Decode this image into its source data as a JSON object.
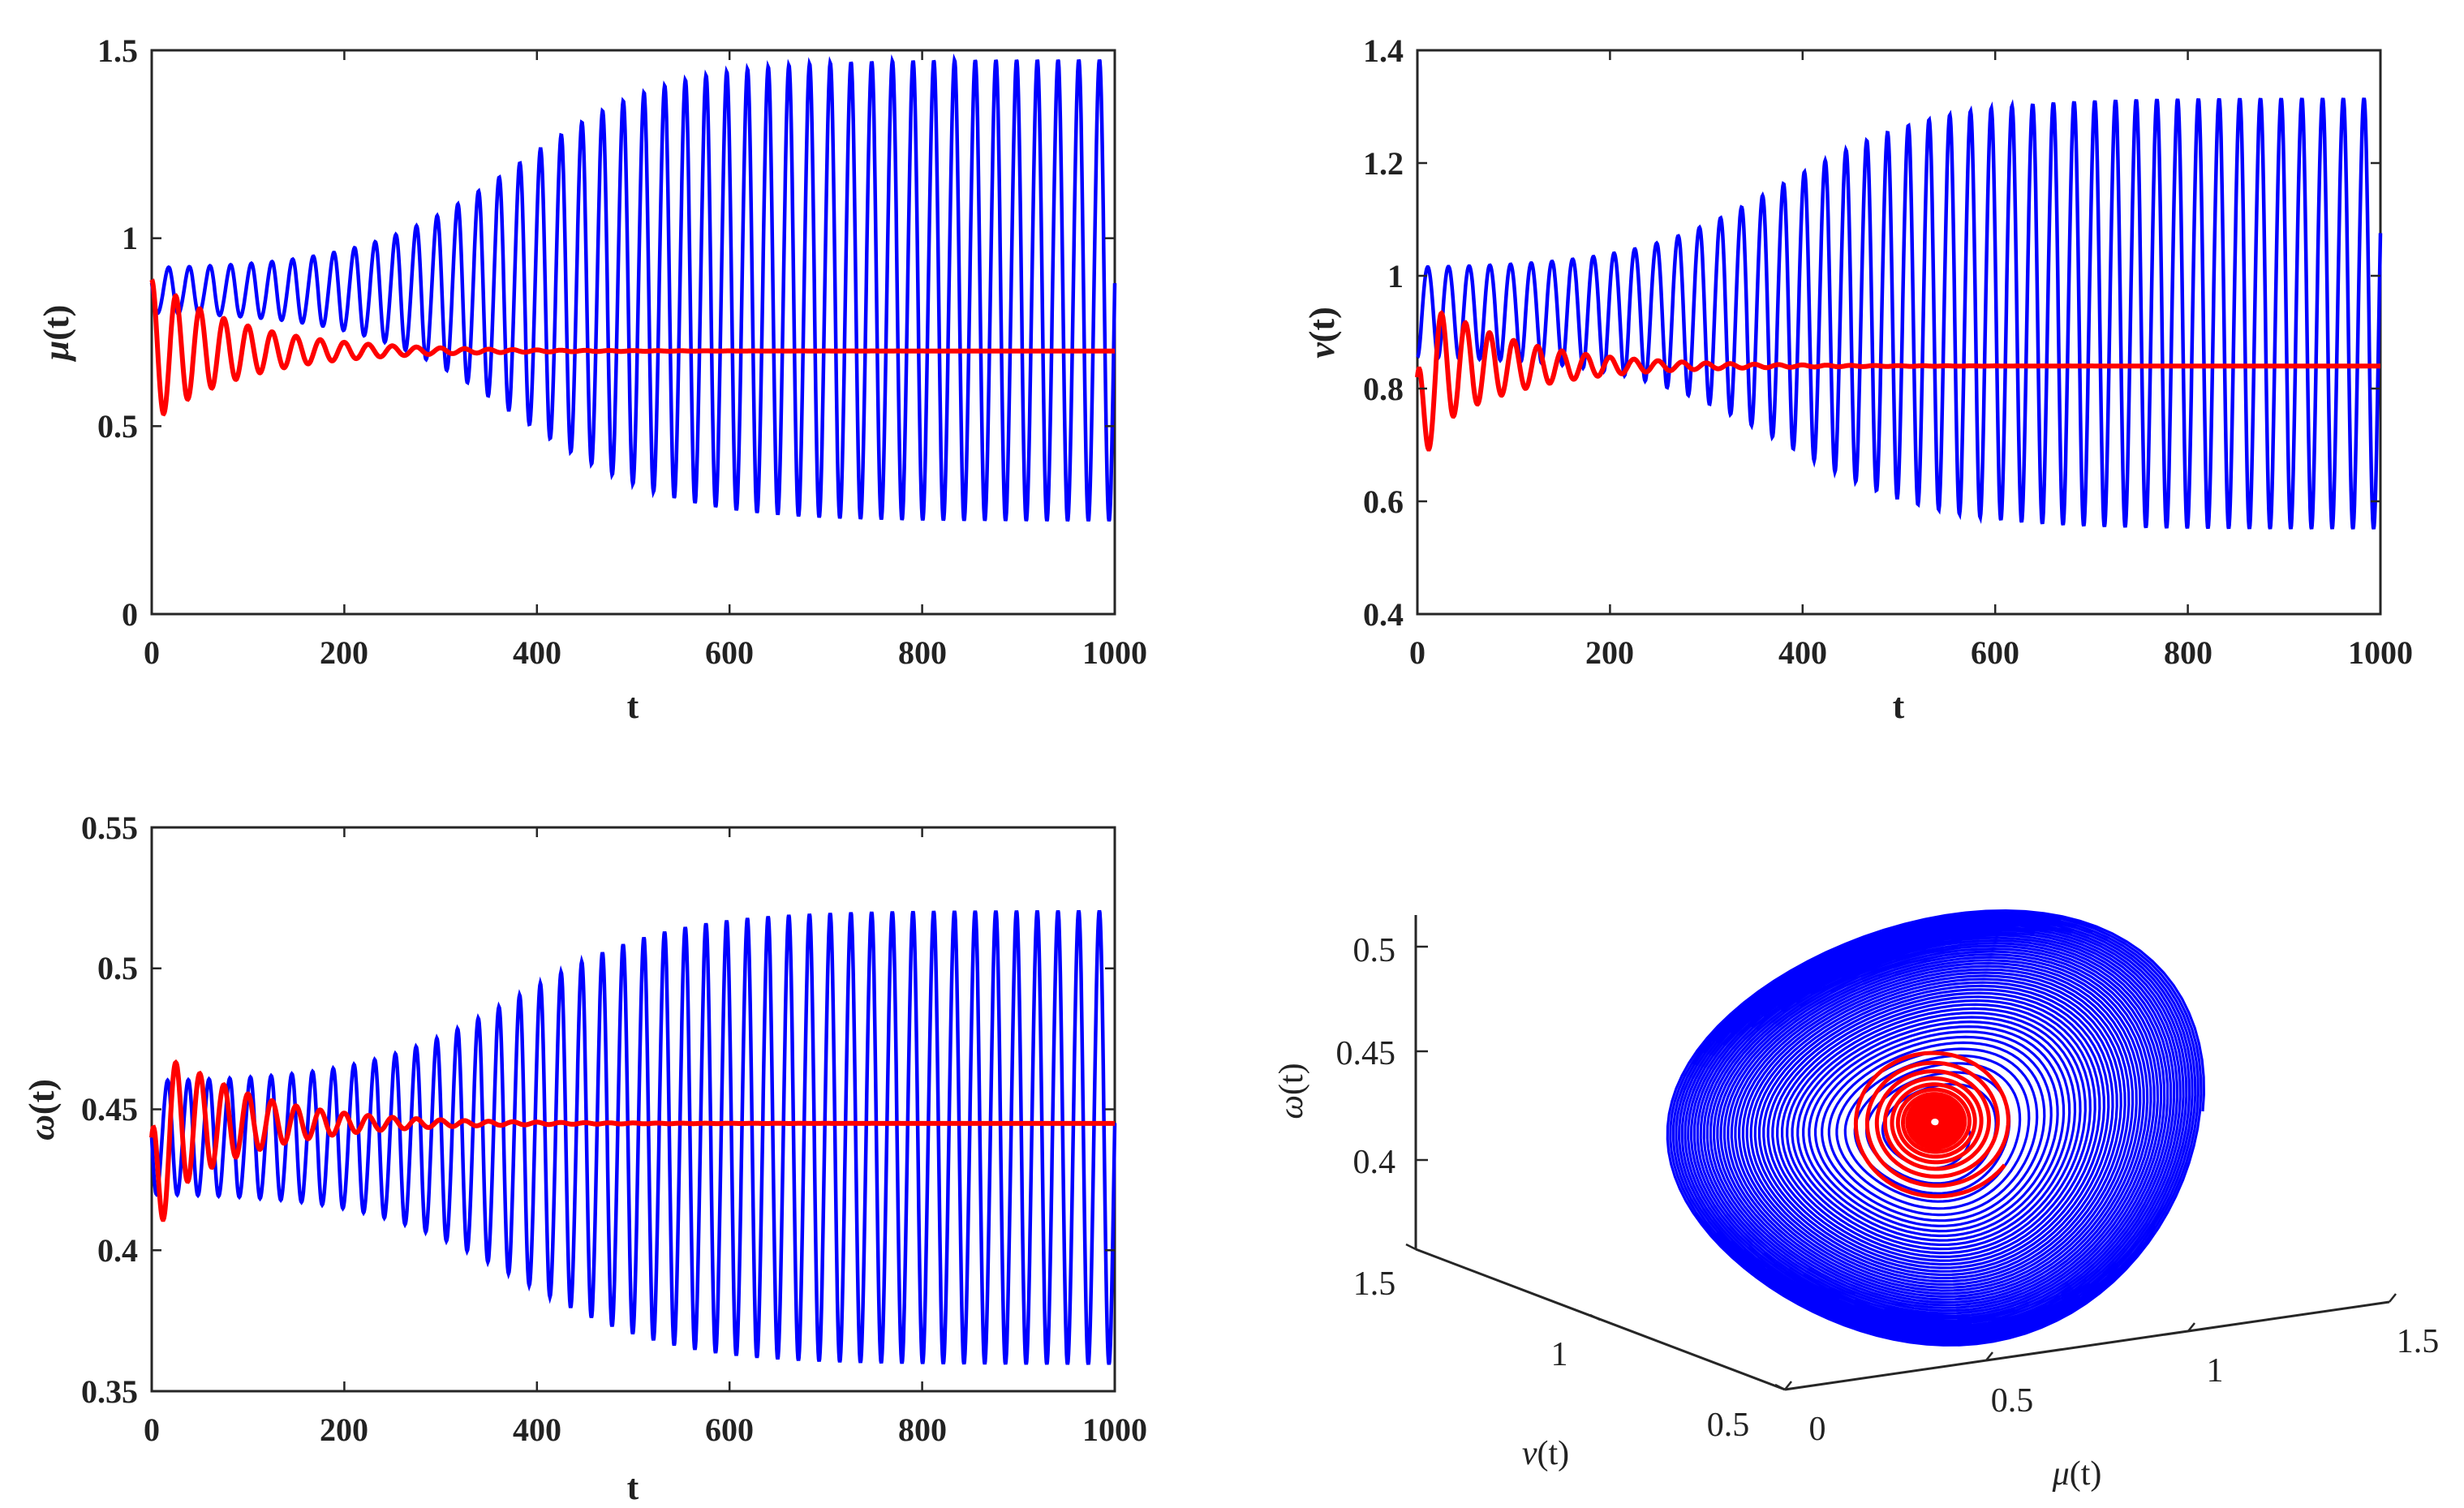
{
  "colors": {
    "blue": "#0000ff",
    "red": "#ff0000",
    "axis": "#262626"
  },
  "chart_data": [
    {
      "type": "line",
      "xlabel": "t",
      "ylabel_symbol": "μ",
      "ylabel_suffix": "(t)",
      "xlim": [
        0,
        1000
      ],
      "ylim": [
        0,
        1.5
      ],
      "xticks": [
        0,
        200,
        400,
        600,
        800,
        1000
      ],
      "yticks": [
        0,
        0.5,
        1,
        1.5
      ],
      "xtick_labels": [
        "0",
        "200",
        "400",
        "600",
        "800",
        "1000"
      ],
      "ytick_labels": [
        "0",
        "0.5",
        "1",
        "1.5"
      ],
      "series": [
        {
          "name": "blue",
          "color": "#0000ff",
          "start": 0.88,
          "eq": 0.86,
          "amp_start": 0.06,
          "amp_end": 0.61,
          "period": 21.5,
          "tau": 250,
          "t_mid": 380
        },
        {
          "name": "red",
          "color": "#ff0000",
          "start": 0.89,
          "eq": 0.7,
          "amp_start": 0.19,
          "decay": 95,
          "period": 25
        }
      ]
    },
    {
      "type": "line",
      "xlabel": "t",
      "ylabel_symbol": "ν",
      "ylabel_suffix": "(t)",
      "xlim": [
        0,
        1000
      ],
      "ylim": [
        0.4,
        1.4
      ],
      "xticks": [
        0,
        200,
        400,
        600,
        800,
        1000
      ],
      "yticks": [
        0.4,
        0.6,
        0.8,
        1,
        1.2,
        1.4
      ],
      "xtick_labels": [
        "0",
        "200",
        "400",
        "600",
        "800",
        "1000"
      ],
      "ytick_labels": [
        "0.4",
        "0.6",
        "0.8",
        "1",
        "1.2",
        "1.4"
      ],
      "series": [
        {
          "name": "blue",
          "color": "#0000ff",
          "start": 0.82,
          "eq": 0.94,
          "amp_start": 0.08,
          "amp_end": 0.38,
          "period": 21.5,
          "tau": 250,
          "t_mid": 380
        },
        {
          "name": "red",
          "color": "#ff0000",
          "start": 0.82,
          "eq": 0.84,
          "amp_start": 0.13,
          "decay": 95,
          "period": 25
        }
      ]
    },
    {
      "type": "line",
      "xlabel": "t",
      "ylabel_symbol": "ω",
      "ylabel_suffix": "(t)",
      "xlim": [
        0,
        1000
      ],
      "ylim": [
        0.35,
        0.55
      ],
      "xticks": [
        0,
        200,
        400,
        600,
        800,
        1000
      ],
      "yticks": [
        0.35,
        0.4,
        0.45,
        0.5,
        0.55
      ],
      "xtick_labels": [
        "0",
        "200",
        "400",
        "600",
        "800",
        "1000"
      ],
      "ytick_labels": [
        "0.35",
        "0.4",
        "0.45",
        "0.5",
        "0.55"
      ],
      "series": [
        {
          "name": "blue",
          "color": "#0000ff",
          "start": 0.44,
          "eq": 0.44,
          "amp_start": 0.02,
          "amp_end": 0.08,
          "period": 21.5,
          "tau": 250,
          "t_mid": 380
        },
        {
          "name": "red",
          "color": "#ff0000",
          "start": 0.44,
          "eq": 0.445,
          "amp_start": 0.03,
          "decay": 95,
          "period": 25
        }
      ]
    },
    {
      "type": "line3d",
      "xlabel_symbol": "μ",
      "ylabel_symbol": "ν",
      "zlabel_symbol": "ω",
      "label_suffix": "(t)",
      "xlim": [
        0,
        1.5
      ],
      "ylim": [
        0.5,
        1.5
      ],
      "zlim": [
        0.37,
        0.52
      ],
      "xtick_labels": [
        "0",
        "0.5",
        "1",
        "1.5"
      ],
      "ytick_labels": [
        "0.5",
        "1",
        "1.5"
      ],
      "ztick_labels": [
        "0.4",
        "0.45",
        "0.5"
      ],
      "series": [
        {
          "name": "blue",
          "color": "#0000ff",
          "description": "outward spiral to limit cycle, mu 0.25–1.47, nu 0.56–1.31, omega 0.36–0.52"
        },
        {
          "name": "red",
          "color": "#ff0000",
          "description": "inward spiral to equilibrium near mu 0.70, nu 0.84, omega 0.445"
        }
      ]
    }
  ]
}
